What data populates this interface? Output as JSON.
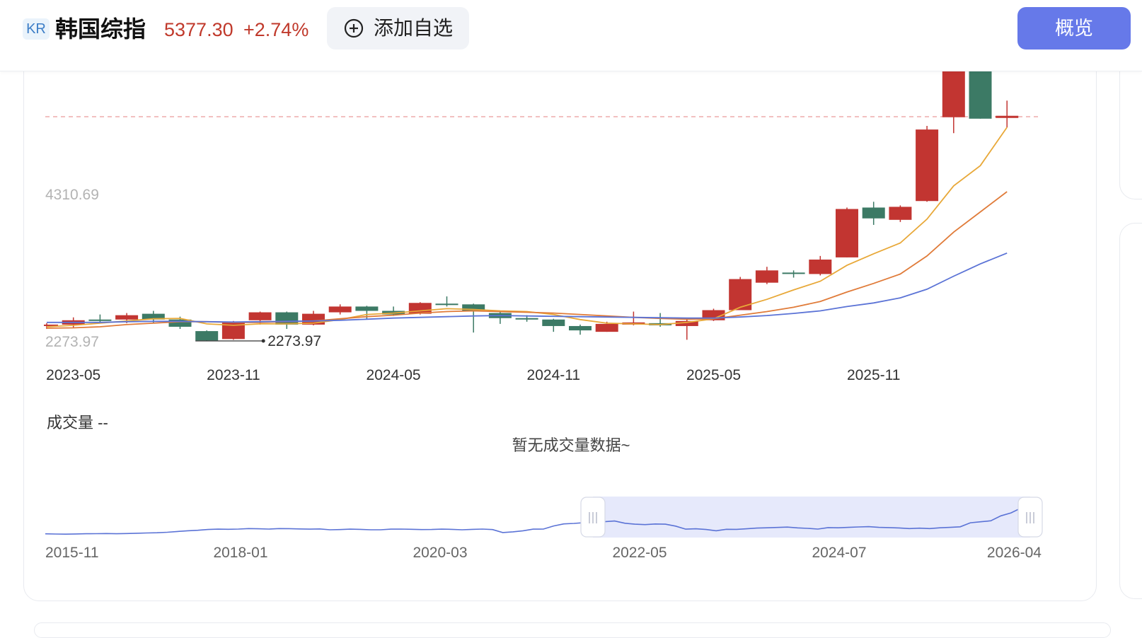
{
  "header": {
    "market_badge": "KR",
    "title": "韩国综指",
    "price": "5377.30",
    "change": "+2.74%",
    "watch_label": "添加自选",
    "overview_label": "概览"
  },
  "icons": {
    "add": "plus-circle-icon",
    "slider_handle": "grip-handle-icon"
  },
  "colors": {
    "up": "#c23531",
    "down": "#3c7a65",
    "ma5": "#e8a838",
    "ma10": "#e07b39",
    "ma20": "#5b73d6",
    "accent": "#6679e9",
    "price_line": "#e99a9a"
  },
  "volume": {
    "label": "成交量 --",
    "empty_text": "暂无成交量数据~"
  },
  "chart_data": [
    {
      "type": "candlestick",
      "title": "",
      "y_labels": [
        "4310.69",
        "2273.97"
      ],
      "min_marker": "2273.97",
      "current_price_line": 5377.3,
      "ylim": [
        2273.97,
        6500
      ],
      "x_tick_labels": [
        "2023-05",
        "2023-11",
        "2024-05",
        "2024-11",
        "2025-05",
        "2025-11"
      ],
      "candles": [
        {
          "period": "2023-04",
          "open": 2480,
          "close": 2500,
          "high": 2520,
          "low": 2440
        },
        {
          "period": "2023-05",
          "open": 2500,
          "close": 2560,
          "high": 2600,
          "low": 2460
        },
        {
          "period": "2023-06",
          "open": 2570,
          "close": 2560,
          "high": 2640,
          "low": 2520
        },
        {
          "period": "2023-07",
          "open": 2570,
          "close": 2630,
          "high": 2660,
          "low": 2520
        },
        {
          "period": "2023-08",
          "open": 2650,
          "close": 2570,
          "high": 2690,
          "low": 2520
        },
        {
          "period": "2023-09",
          "open": 2570,
          "close": 2470,
          "high": 2610,
          "low": 2440
        },
        {
          "period": "2023-10",
          "open": 2410,
          "close": 2280,
          "high": 2420,
          "low": 2273.97
        },
        {
          "period": "2023-11",
          "open": 2300,
          "close": 2530,
          "high": 2550,
          "low": 2290
        },
        {
          "period": "2023-12",
          "open": 2560,
          "close": 2670,
          "high": 2680,
          "low": 2500
        },
        {
          "period": "2024-01",
          "open": 2670,
          "close": 2500,
          "high": 2680,
          "low": 2440
        },
        {
          "period": "2024-02",
          "open": 2500,
          "close": 2650,
          "high": 2690,
          "low": 2490
        },
        {
          "period": "2024-03",
          "open": 2670,
          "close": 2750,
          "high": 2780,
          "low": 2640
        },
        {
          "period": "2024-04",
          "open": 2750,
          "close": 2690,
          "high": 2760,
          "low": 2580
        },
        {
          "period": "2024-05",
          "open": 2690,
          "close": 2640,
          "high": 2750,
          "low": 2620
        },
        {
          "period": "2024-06",
          "open": 2650,
          "close": 2800,
          "high": 2810,
          "low": 2640
        },
        {
          "period": "2024-07",
          "open": 2790,
          "close": 2780,
          "high": 2890,
          "low": 2750
        },
        {
          "period": "2024-08",
          "open": 2780,
          "close": 2680,
          "high": 2790,
          "low": 2390
        },
        {
          "period": "2024-09",
          "open": 2660,
          "close": 2590,
          "high": 2680,
          "low": 2510
        },
        {
          "period": "2024-10",
          "open": 2590,
          "close": 2570,
          "high": 2630,
          "low": 2540
        },
        {
          "period": "2024-11",
          "open": 2570,
          "close": 2480,
          "high": 2580,
          "low": 2400
        },
        {
          "period": "2024-12",
          "open": 2480,
          "close": 2420,
          "high": 2500,
          "low": 2360
        },
        {
          "period": "2025-01",
          "open": 2400,
          "close": 2510,
          "high": 2540,
          "low": 2400
        },
        {
          "period": "2025-02",
          "open": 2500,
          "close": 2530,
          "high": 2680,
          "low": 2490
        },
        {
          "period": "2025-03",
          "open": 2520,
          "close": 2490,
          "high": 2660,
          "low": 2470
        },
        {
          "period": "2025-04",
          "open": 2480,
          "close": 2550,
          "high": 2580,
          "low": 2290
        },
        {
          "period": "2025-05",
          "open": 2560,
          "close": 2700,
          "high": 2720,
          "low": 2550
        },
        {
          "period": "2025-06",
          "open": 2700,
          "close": 3130,
          "high": 3160,
          "low": 2700
        },
        {
          "period": "2025-07",
          "open": 3080,
          "close": 3250,
          "high": 3300,
          "low": 3060
        },
        {
          "period": "2025-08",
          "open": 3220,
          "close": 3210,
          "high": 3250,
          "low": 3150
        },
        {
          "period": "2025-09",
          "open": 3200,
          "close": 3400,
          "high": 3450,
          "low": 3180
        },
        {
          "period": "2025-10",
          "open": 3430,
          "close": 4100,
          "high": 4120,
          "low": 3430
        },
        {
          "period": "2025-11",
          "open": 4120,
          "close": 3970,
          "high": 4200,
          "low": 3880
        },
        {
          "period": "2025-12",
          "open": 3950,
          "close": 4130,
          "high": 4150,
          "low": 3920
        },
        {
          "period": "2026-01",
          "open": 4210,
          "close": 5200,
          "high": 5250,
          "low": 4200
        },
        {
          "period": "2026-02",
          "open": 5370,
          "close": 6400,
          "high": 6500,
          "low": 5150
        },
        {
          "period": "2026-03",
          "open": 6500,
          "close": 5350,
          "high": 6500,
          "low": 5350
        },
        {
          "period": "2026-04",
          "open": 5360,
          "close": 5390,
          "high": 5600,
          "low": 5230
        }
      ],
      "ma_series": [
        {
          "key": "ma5",
          "values": [
            2470,
            2490,
            2520,
            2550,
            2580,
            2585,
            2510,
            2490,
            2510,
            2510,
            2520,
            2570,
            2640,
            2660,
            2690,
            2720,
            2710,
            2690,
            2680,
            2640,
            2570,
            2520,
            2510,
            2500,
            2530,
            2580,
            2740,
            2850,
            2980,
            3100,
            3320,
            3480,
            3630,
            3960,
            4420,
            4700,
            5230
          ]
        },
        {
          "key": "ma10",
          "values": [
            2450,
            2455,
            2470,
            2500,
            2520,
            2540,
            2540,
            2530,
            2530,
            2540,
            2550,
            2580,
            2610,
            2630,
            2660,
            2680,
            2690,
            2680,
            2670,
            2660,
            2640,
            2620,
            2600,
            2585,
            2575,
            2580,
            2630,
            2680,
            2740,
            2820,
            2950,
            3070,
            3200,
            3450,
            3780,
            4060,
            4340
          ]
        },
        {
          "key": "ma20",
          "values": [
            2530,
            2530,
            2530,
            2540,
            2545,
            2545,
            2540,
            2535,
            2540,
            2545,
            2550,
            2560,
            2575,
            2590,
            2600,
            2610,
            2620,
            2625,
            2620,
            2615,
            2610,
            2605,
            2600,
            2595,
            2590,
            2590,
            2605,
            2625,
            2655,
            2690,
            2750,
            2800,
            2870,
            2990,
            3170,
            3340,
            3490
          ]
        }
      ]
    },
    {
      "type": "line",
      "title": "",
      "role": "range-overview",
      "x_tick_labels": [
        "2015-11",
        "2018-01",
        "2020-03",
        "2022-05",
        "2024-07",
        "2026-04"
      ],
      "values": [
        1990,
        1970,
        1960,
        1980,
        2000,
        2010,
        2020,
        2000,
        2020,
        2050,
        2080,
        2100,
        2150,
        2230,
        2300,
        2350,
        2430,
        2460,
        2450,
        2470,
        2520,
        2500,
        2470,
        2520,
        2510,
        2480,
        2460,
        2480,
        2400,
        2420,
        2460,
        2440,
        2400,
        2400,
        2460,
        2470,
        2450,
        2420,
        2430,
        2460,
        2440,
        2400,
        2440,
        2470,
        2420,
        2120,
        2190,
        2300,
        2460,
        2470,
        2780,
        2990,
        3040,
        3120,
        3170,
        3210,
        3280,
        3060,
        2960,
        2920,
        2980,
        2960,
        2770,
        2460,
        2500,
        2430,
        2300,
        2450,
        2440,
        2500,
        2570,
        2600,
        2630,
        2670,
        2590,
        2540,
        2470,
        2620,
        2600,
        2640,
        2680,
        2710,
        2640,
        2620,
        2580,
        2520,
        2560,
        2520,
        2600,
        2640,
        2700,
        3100,
        3200,
        3300,
        3800,
        4100,
        4600,
        5400,
        5377
      ]
    }
  ]
}
